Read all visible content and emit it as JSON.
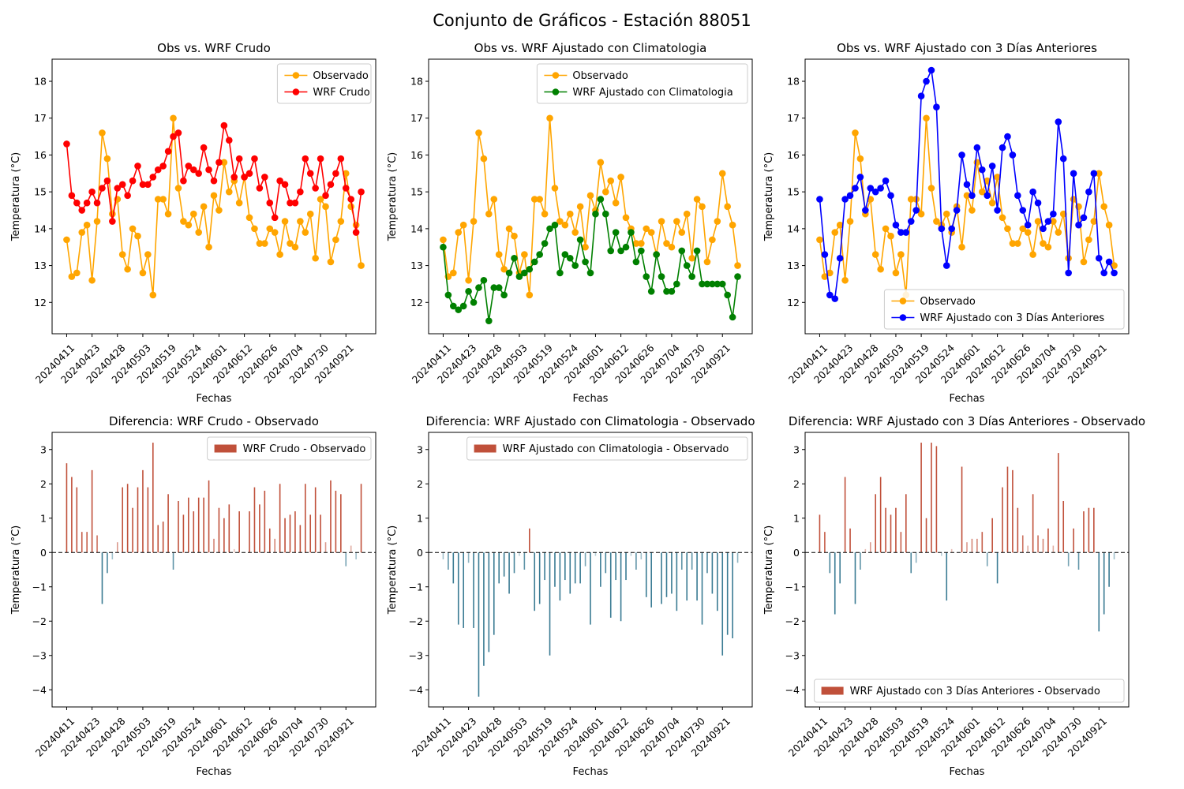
{
  "suptitle": "Conjunto de Gráficos - Estación 88051",
  "colors": {
    "observed": "#FFA500",
    "raw": "#FF0000",
    "clim": "#008000",
    "prev3": "#0000FF",
    "pos": "#C0503A",
    "neg": "#3A7B93"
  },
  "date_ticks": [
    "20240411",
    "20240423",
    "20240428",
    "20240503",
    "20240519",
    "20240524",
    "20240601",
    "20240612",
    "20240626",
    "20240704",
    "20240730",
    "20240921"
  ],
  "chart_data": [
    {
      "id": "top1",
      "type": "line",
      "title": "Obs vs. WRF Crudo",
      "xlabel": "Fechas",
      "ylabel": "Temperatura (°C)",
      "ylim": [
        11.15,
        18.6
      ],
      "yticks": [
        12,
        13,
        14,
        15,
        16,
        17,
        18
      ],
      "legend": "top-right",
      "series": [
        {
          "name": "Observado",
          "color": "#FFA500",
          "values": [
            13.7,
            12.7,
            12.8,
            13.9,
            14.1,
            12.6,
            14.2,
            16.6,
            15.9,
            14.4,
            14.8,
            13.3,
            12.9,
            14.0,
            13.8,
            12.8,
            13.3,
            12.2,
            14.8,
            14.8,
            14.4,
            17.0,
            15.1,
            14.2,
            14.1,
            14.4,
            13.9,
            14.6,
            13.5,
            14.9,
            14.5,
            15.8,
            15.0,
            15.3,
            14.7,
            15.4,
            14.3,
            14.0,
            13.6,
            13.6,
            14.0,
            13.9,
            13.3,
            14.2,
            13.6,
            13.5,
            14.2,
            13.9,
            14.4,
            13.2,
            14.8,
            14.6,
            13.1,
            13.7,
            14.2,
            15.5,
            14.6,
            14.1,
            13.0
          ]
        },
        {
          "name": "WRF Crudo",
          "color": "#FF0000",
          "values": [
            16.3,
            14.9,
            14.7,
            14.5,
            14.7,
            15.0,
            14.7,
            15.1,
            15.3,
            14.2,
            15.1,
            15.2,
            14.9,
            15.3,
            15.7,
            15.2,
            15.2,
            15.4,
            15.6,
            15.7,
            16.1,
            16.5,
            16.6,
            15.3,
            15.7,
            15.6,
            15.5,
            16.2,
            15.6,
            15.3,
            15.8,
            16.8,
            16.4,
            15.4,
            15.9,
            15.4,
            15.5,
            15.9,
            15.1,
            15.4,
            14.7,
            14.3,
            15.3,
            15.2,
            14.7,
            14.7,
            15.0,
            15.9,
            15.5,
            15.1,
            15.9,
            14.9,
            15.2,
            15.5,
            15.9,
            15.1,
            14.8,
            13.9,
            15.0
          ]
        }
      ]
    },
    {
      "id": "top2",
      "type": "line",
      "title": "Obs vs. WRF Ajustado con Climatologia",
      "xlabel": "Fechas",
      "ylabel": "Temperatura (°C)",
      "ylim": [
        11.15,
        18.6
      ],
      "yticks": [
        12,
        13,
        14,
        15,
        16,
        17,
        18
      ],
      "legend": "top-right",
      "series": [
        {
          "name": "Observado",
          "color": "#FFA500",
          "values": [
            13.7,
            12.7,
            12.8,
            13.9,
            14.1,
            12.6,
            14.2,
            16.6,
            15.9,
            14.4,
            14.8,
            13.3,
            12.9,
            14.0,
            13.8,
            12.8,
            13.3,
            12.2,
            14.8,
            14.8,
            14.4,
            17.0,
            15.1,
            14.2,
            14.1,
            14.4,
            13.9,
            14.6,
            13.5,
            14.9,
            14.5,
            15.8,
            15.0,
            15.3,
            14.7,
            15.4,
            14.3,
            14.0,
            13.6,
            13.6,
            14.0,
            13.9,
            13.3,
            14.2,
            13.6,
            13.5,
            14.2,
            13.9,
            14.4,
            13.2,
            14.8,
            14.6,
            13.1,
            13.7,
            14.2,
            15.5,
            14.6,
            14.1,
            13.0
          ]
        },
        {
          "name": "WRF Ajustado con Climatologia",
          "color": "#008000",
          "values": [
            13.5,
            12.2,
            11.9,
            11.8,
            11.9,
            12.3,
            12.0,
            12.4,
            12.6,
            11.5,
            12.4,
            12.4,
            12.2,
            12.8,
            13.2,
            12.7,
            12.8,
            12.9,
            13.1,
            13.3,
            13.6,
            14.0,
            14.1,
            12.8,
            13.3,
            13.2,
            13.0,
            13.7,
            13.1,
            12.8,
            14.4,
            14.8,
            14.4,
            13.4,
            13.9,
            13.4,
            13.5,
            13.9,
            13.1,
            13.4,
            12.7,
            12.3,
            13.3,
            12.7,
            12.3,
            12.3,
            12.5,
            13.4,
            13.0,
            12.7,
            13.4,
            12.5,
            12.5,
            12.5,
            12.5,
            12.5,
            12.2,
            11.6,
            12.7
          ]
        }
      ]
    },
    {
      "id": "top3",
      "type": "line",
      "title": "Obs vs. WRF Ajustado con 3 Días Anteriores",
      "xlabel": "Fechas",
      "ylabel": "Temperatura (°C)",
      "ylim": [
        11.15,
        18.6
      ],
      "yticks": [
        12,
        13,
        14,
        15,
        16,
        17,
        18
      ],
      "legend": "bottom-right",
      "series": [
        {
          "name": "Observado",
          "color": "#FFA500",
          "values": [
            13.7,
            12.7,
            12.8,
            13.9,
            14.1,
            12.6,
            14.2,
            16.6,
            15.9,
            14.4,
            14.8,
            13.3,
            12.9,
            14.0,
            13.8,
            12.8,
            13.3,
            12.2,
            14.8,
            14.8,
            14.4,
            17.0,
            15.1,
            14.2,
            14.1,
            14.4,
            13.9,
            14.6,
            13.5,
            14.9,
            14.5,
            15.8,
            15.0,
            15.3,
            14.7,
            15.4,
            14.3,
            14.0,
            13.6,
            13.6,
            14.0,
            13.9,
            13.3,
            14.2,
            13.6,
            13.5,
            14.2,
            13.9,
            14.4,
            13.2,
            14.8,
            14.6,
            13.1,
            13.7,
            14.2,
            15.5,
            14.6,
            14.1,
            13.0
          ]
        },
        {
          "name": "WRF Ajustado con 3 Días Anteriores",
          "color": "#0000FF",
          "values": [
            14.8,
            13.3,
            12.2,
            12.1,
            13.2,
            14.8,
            14.9,
            15.1,
            15.4,
            14.5,
            15.1,
            15.0,
            15.1,
            15.3,
            14.9,
            14.1,
            13.9,
            13.9,
            14.2,
            14.5,
            17.6,
            18.0,
            18.3,
            17.3,
            14.0,
            13.0,
            14.0,
            14.5,
            16.0,
            15.2,
            14.9,
            16.2,
            15.6,
            14.9,
            15.7,
            14.5,
            16.2,
            16.5,
            16.0,
            14.9,
            14.5,
            14.1,
            15.0,
            14.7,
            14.0,
            14.2,
            14.4,
            16.9,
            15.9,
            12.8,
            15.5,
            14.1,
            14.3,
            15.0,
            15.5,
            13.2,
            12.8,
            13.1,
            12.8
          ]
        }
      ]
    },
    {
      "id": "bot1",
      "type": "bar",
      "title": "Diferencia: WRF Crudo - Observado",
      "xlabel": "Fechas",
      "ylabel": "Temperatura (°C)",
      "ylim": [
        -4.5,
        3.5
      ],
      "yticks": [
        -4,
        -3,
        -2,
        -1,
        0,
        1,
        2,
        3
      ],
      "legend": "top-right",
      "series": [
        {
          "name": "WRF Crudo - Observado",
          "values": [
            2.6,
            2.2,
            1.9,
            0.6,
            0.6,
            2.4,
            0.5,
            -1.5,
            -0.6,
            -0.2,
            0.3,
            1.9,
            2.0,
            1.3,
            1.9,
            2.4,
            1.9,
            3.2,
            0.8,
            0.9,
            1.7,
            -0.5,
            1.5,
            1.1,
            1.6,
            1.2,
            1.6,
            1.6,
            2.1,
            0.4,
            1.3,
            1.0,
            1.4,
            0.1,
            1.2,
            0.0,
            1.2,
            1.9,
            1.4,
            1.8,
            0.7,
            0.4,
            2.0,
            1.0,
            1.1,
            1.2,
            0.8,
            2.0,
            1.1,
            1.9,
            1.1,
            0.3,
            2.1,
            1.8,
            1.7,
            -0.4,
            0.2,
            -0.2,
            2.0
          ]
        }
      ]
    },
    {
      "id": "bot2",
      "type": "bar",
      "title": "Diferencia: WRF Ajustado con Climatologia - Observado",
      "xlabel": "Fechas",
      "ylabel": "Temperatura (°C)",
      "ylim": [
        -4.5,
        3.5
      ],
      "yticks": [
        -4,
        -3,
        -2,
        -1,
        0,
        1,
        2,
        3
      ],
      "legend": "top-right",
      "series": [
        {
          "name": "WRF Ajustado con Climatologia - Observado",
          "values": [
            -0.2,
            -0.5,
            -0.9,
            -2.1,
            -2.2,
            -0.3,
            -2.2,
            -4.2,
            -3.3,
            -2.9,
            -2.4,
            -0.9,
            -0.7,
            -1.2,
            -0.6,
            -0.1,
            -0.5,
            0.7,
            -1.7,
            -1.5,
            -0.8,
            -3.0,
            -1.0,
            -1.4,
            -0.8,
            -1.2,
            -0.9,
            -0.9,
            -0.4,
            -2.1,
            -0.1,
            -1.0,
            -0.6,
            -1.9,
            -0.8,
            -2.0,
            -0.8,
            -0.1,
            -0.5,
            -0.2,
            -1.3,
            -1.6,
            0.0,
            -1.5,
            -1.3,
            -1.2,
            -1.7,
            -0.5,
            -1.4,
            -0.5,
            -1.4,
            -2.1,
            -0.6,
            -1.2,
            -1.7,
            -3.0,
            -2.4,
            -2.5,
            -0.3
          ]
        }
      ]
    },
    {
      "id": "bot3",
      "type": "bar",
      "title": "Diferencia: WRF Ajustado con 3 Días Anteriores - Observado",
      "xlabel": "Fechas",
      "ylabel": "Temperatura (°C)",
      "ylim": [
        -4.5,
        3.5
      ],
      "yticks": [
        -4,
        -3,
        -2,
        -1,
        0,
        1,
        2,
        3
      ],
      "legend": "bottom-right",
      "series": [
        {
          "name": "WRF Ajustado con 3 Días Anteriores - Observado",
          "values": [
            1.1,
            0.6,
            -0.6,
            -1.8,
            -0.9,
            2.2,
            0.7,
            -1.5,
            -0.5,
            0.1,
            0.3,
            1.7,
            2.2,
            1.3,
            1.1,
            1.3,
            0.6,
            1.7,
            -0.6,
            -0.3,
            3.2,
            1.0,
            3.2,
            3.1,
            -0.1,
            -1.4,
            0.1,
            0.0,
            2.5,
            0.3,
            0.4,
            0.4,
            0.6,
            -0.4,
            1.0,
            -0.9,
            1.9,
            2.5,
            2.4,
            1.3,
            0.5,
            0.2,
            1.7,
            0.5,
            0.4,
            0.7,
            0.2,
            2.9,
            1.5,
            -0.4,
            0.7,
            -0.5,
            1.2,
            1.3,
            1.3,
            -2.3,
            -1.8,
            -1.0,
            -0.2
          ]
        }
      ]
    }
  ]
}
